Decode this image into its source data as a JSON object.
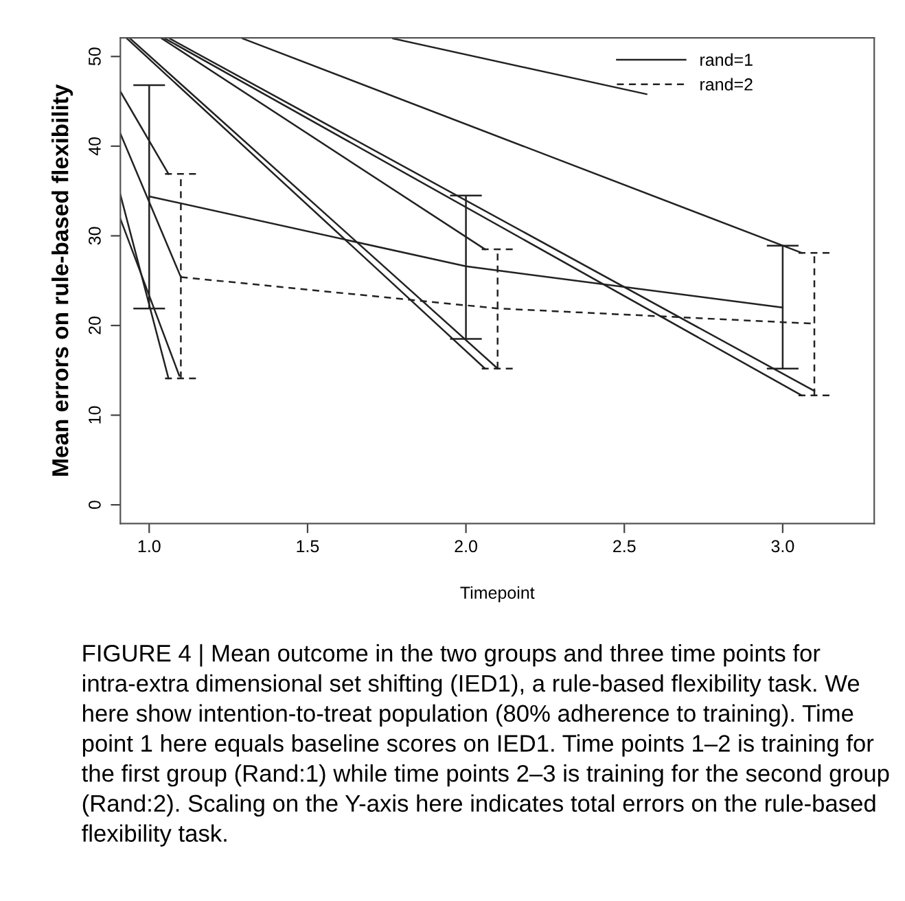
{
  "chart_data": {
    "type": "line",
    "xlabel": "Timepoint",
    "ylabel": "Mean errors on rule-based flexibility",
    "xlim": [
      0.909,
      3.289
    ],
    "ylim": [
      -2.08,
      52.08
    ],
    "xticks": [
      {
        "value": 1,
        "label": "1.0"
      },
      1.5,
      {
        "value": 2,
        "label": "2.0"
      },
      2.5,
      {
        "value": 3,
        "label": "3.0"
      }
    ],
    "yticks": [
      0,
      10,
      20,
      30,
      40,
      50
    ],
    "grid": false,
    "legend": "top right",
    "marker": "none",
    "series": [
      {
        "name": "rand=1",
        "color": "#222222",
        "line_style": "solid",
        "x": [
          1,
          2,
          3
        ],
        "values": [
          34.4,
          26.6,
          22.0
        ],
        "errors": [
          [
            21.9,
            46.8
          ],
          [
            18.5,
            34.5
          ],
          [
            15.2,
            28.9
          ]
        ]
      },
      {
        "name": "rand=2",
        "color": "#222222",
        "line_style": "dashed",
        "x": [
          1.1,
          2.1,
          3.1
        ],
        "values": [
          25.4,
          21.9,
          20.2
        ],
        "errors": [
          [
            14.1,
            36.9
          ],
          [
            15.2,
            28.5
          ],
          [
            12.2,
            28.1
          ]
        ]
      },
      {
        "color": "#222222",
        "line_style": "solid",
        "x": [
          0.909,
          1.061
        ],
        "values": [
          46.1,
          36.9
        ]
      },
      {
        "color": "#222222",
        "line_style": "solid",
        "x": [
          0.909,
          1.1
        ],
        "values": [
          41.4,
          25.4
        ]
      },
      {
        "color": "#222222",
        "line_style": "solid",
        "x": [
          0.909,
          1.061
        ],
        "values": [
          34.6,
          14.1
        ]
      },
      {
        "color": "#222222",
        "line_style": "solid",
        "x": [
          0.909,
          1.095
        ],
        "values": [
          31.9,
          14.4
        ]
      },
      {
        "color": "#222222",
        "line_style": "solid",
        "x": [
          0.93,
          2.06
        ],
        "values": [
          52,
          15.2
        ]
      },
      {
        "color": "#222222",
        "line_style": "solid",
        "x": [
          0.94,
          2.1
        ],
        "values": [
          52,
          15.2
        ]
      },
      {
        "color": "#222222",
        "line_style": "solid",
        "x": [
          1.04,
          2.06
        ],
        "values": [
          52,
          28.5
        ]
      },
      {
        "color": "#222222",
        "line_style": "solid",
        "x": [
          1.05,
          3.06
        ],
        "values": [
          52,
          12.2
        ]
      },
      {
        "color": "#222222",
        "line_style": "solid",
        "x": [
          1.065,
          3.1
        ],
        "values": [
          52,
          12.7
        ]
      },
      {
        "color": "#222222",
        "line_style": "solid",
        "x": [
          1.295,
          3.06
        ],
        "values": [
          52,
          28.1
        ]
      },
      {
        "color": "#222222",
        "line_style": "solid",
        "x": [
          1.77,
          2.57
        ],
        "values": [
          52,
          45.8
        ]
      }
    ],
    "annotations": [
      "FIGURE 4 | Mean outcome in the two groups and three time points for intra-extra dimensional set shifting (IED1), a rule-based flexibility task. We here show intention-to-treat population (80% adherence to training). Time point 1 here equals baseline scores on IED1. Time points 1–2 is training for the first group (Rand:1) while time points 2–3 is training for the second group (Rand:2). Scaling on the Y-axis here indicates total errors on the rule-based flexibility task."
    ]
  }
}
